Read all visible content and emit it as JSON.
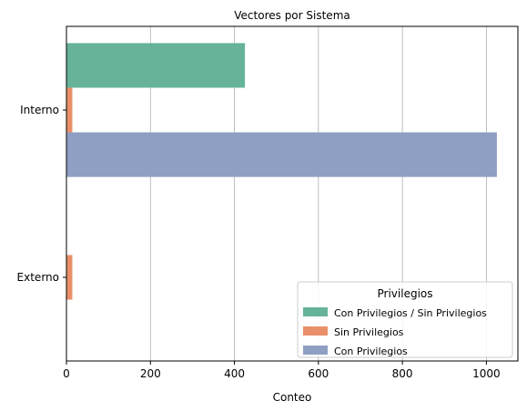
{
  "chart_data": {
    "type": "bar",
    "orientation": "horizontal",
    "title": "Vectores por Sistema",
    "xlabel": "Conteo",
    "ylabel": "",
    "categories": [
      "Interno",
      "Externo"
    ],
    "xlim": [
      0,
      1075
    ],
    "xticks": [
      0,
      200,
      400,
      600,
      800,
      1000
    ],
    "grid": "x",
    "legend": {
      "title": "Privilegios",
      "placement": "lower-right"
    },
    "series": [
      {
        "name": "Con Privilegios / Sin Privilegios",
        "color": "#66b39a",
        "values": [
          425,
          0
        ]
      },
      {
        "name": "Sin Privilegios",
        "color": "#e9906a",
        "values": [
          14,
          14
        ]
      },
      {
        "name": "Con Privilegios",
        "color": "#8f9fc3",
        "values": [
          1025,
          0
        ]
      }
    ]
  }
}
